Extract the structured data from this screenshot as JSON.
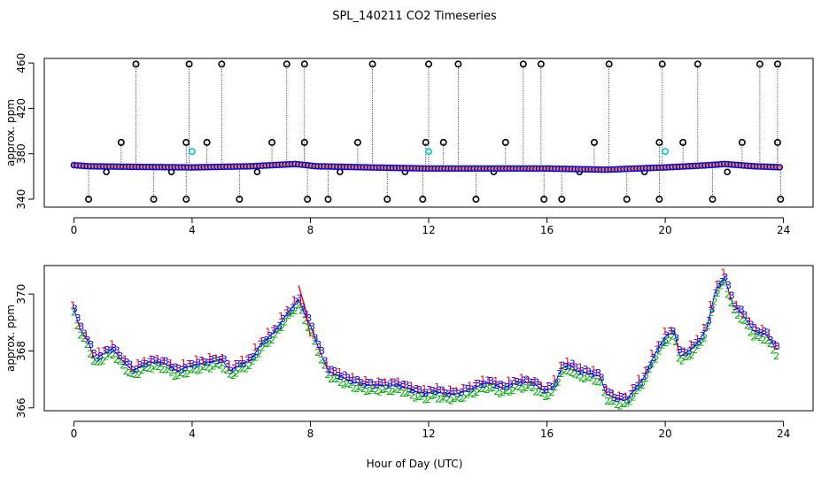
{
  "figure": {
    "title": "SPL_140211  CO2 Timeseries",
    "xlabel": "Hour of Day (UTC)"
  },
  "chart_data": [
    {
      "type": "scatter",
      "panel": "top",
      "ylabel": "approx. ppm",
      "xlim": [
        -1,
        25
      ],
      "ylim": [
        333,
        464
      ],
      "xticks": [
        0,
        4,
        8,
        12,
        16,
        20,
        24
      ],
      "yticks": [
        340,
        380,
        420,
        460
      ],
      "grid": false,
      "baseline_knots": [
        [
          0,
          370
        ],
        [
          0.5,
          369
        ],
        [
          2,
          368.5
        ],
        [
          4,
          368
        ],
        [
          6,
          369
        ],
        [
          7.5,
          371
        ],
        [
          8.2,
          369
        ],
        [
          10,
          368
        ],
        [
          12,
          367
        ],
        [
          14,
          367
        ],
        [
          16,
          367
        ],
        [
          18,
          366
        ],
        [
          20,
          368
        ],
        [
          21.5,
          370
        ],
        [
          22,
          371
        ],
        [
          23,
          369
        ],
        [
          24,
          368
        ]
      ],
      "spikes_high": [
        2.1,
        3.9,
        5.0,
        7.2,
        7.8,
        10.1,
        12.0,
        13.0,
        15.2,
        15.8,
        18.1,
        19.9,
        21.1,
        23.2,
        23.8
      ],
      "spikes_mid": [
        1.6,
        3.8,
        4.5,
        6.7,
        7.8,
        9.6,
        11.9,
        12.5,
        14.6,
        17.6,
        19.8,
        20.6,
        22.6,
        23.8
      ],
      "spikes_low": [
        0.5,
        2.7,
        3.8,
        5.6,
        7.9,
        8.6,
        10.6,
        11.8,
        13.6,
        15.9,
        16.5,
        18.7,
        19.8,
        21.6,
        23.9
      ],
      "minor_marks": [
        1.1,
        3.3,
        6.2,
        9.0,
        11.2,
        14.2,
        17.1,
        19.3,
        22.1
      ],
      "cyan_points": [
        [
          4.0,
          382
        ],
        [
          12.0,
          382
        ],
        [
          20.0,
          382
        ]
      ],
      "spike_values": {
        "high": 459,
        "mid": 390,
        "low": 340,
        "minor": 364
      },
      "colors": {
        "series": "#0000ff",
        "outlier": "#000000",
        "highlight": "#00cccc",
        "fill": "#ff8800"
      }
    },
    {
      "type": "line",
      "panel": "bottom",
      "ylabel": "approx. ppm",
      "xlim": [
        -1,
        25
      ],
      "ylim": [
        365.9,
        371.0
      ],
      "xticks": [
        0,
        4,
        8,
        12,
        16,
        20,
        24
      ],
      "yticks": [
        366,
        368,
        370
      ],
      "grid": false,
      "series": [
        {
          "name": "1",
          "color": "#ff0000",
          "offset": 0.12
        },
        {
          "name": "2",
          "color": "#00aa00",
          "offset": -0.18
        },
        {
          "name": "3",
          "color": "#0000ff",
          "offset": 0.05
        }
      ],
      "knots": [
        [
          0,
          369.5
        ],
        [
          0.2,
          368.8
        ],
        [
          0.5,
          368.3
        ],
        [
          0.7,
          367.7
        ],
        [
          1,
          367.9
        ],
        [
          1.3,
          368.1
        ],
        [
          1.6,
          367.7
        ],
        [
          2,
          367.3
        ],
        [
          2.5,
          367.6
        ],
        [
          3,
          367.6
        ],
        [
          3.5,
          367.3
        ],
        [
          4,
          367.5
        ],
        [
          4.5,
          367.6
        ],
        [
          5,
          367.7
        ],
        [
          5.3,
          367.3
        ],
        [
          5.6,
          367.5
        ],
        [
          6,
          367.7
        ],
        [
          6.3,
          368.2
        ],
        [
          6.8,
          368.7
        ],
        [
          7.2,
          369.3
        ],
        [
          7.6,
          369.8
        ],
        [
          7.8,
          369.3
        ],
        [
          8,
          368.9
        ],
        [
          8.2,
          368.3
        ],
        [
          8.6,
          367.3
        ],
        [
          9,
          367.1
        ],
        [
          9.5,
          366.9
        ],
        [
          10,
          366.8
        ],
        [
          10.5,
          366.8
        ],
        [
          11,
          366.8
        ],
        [
          11.5,
          366.6
        ],
        [
          11.9,
          366.5
        ],
        [
          12.2,
          366.6
        ],
        [
          12.5,
          366.5
        ],
        [
          13,
          366.5
        ],
        [
          13.5,
          366.7
        ],
        [
          14,
          366.9
        ],
        [
          14.5,
          366.7
        ],
        [
          15,
          366.9
        ],
        [
          15.5,
          366.9
        ],
        [
          15.9,
          366.6
        ],
        [
          16.2,
          366.7
        ],
        [
          16.5,
          367.4
        ],
        [
          16.8,
          367.5
        ],
        [
          17,
          367.3
        ],
        [
          17.5,
          367.2
        ],
        [
          17.8,
          367.1
        ],
        [
          18,
          366.5
        ],
        [
          18.4,
          366.3
        ],
        [
          18.7,
          366.3
        ],
        [
          19,
          366.7
        ],
        [
          19.3,
          367.1
        ],
        [
          19.6,
          367.8
        ],
        [
          20,
          368.5
        ],
        [
          20.3,
          368.7
        ],
        [
          20.5,
          367.8
        ],
        [
          20.8,
          368.0
        ],
        [
          21.1,
          368.3
        ],
        [
          21.4,
          368.8
        ],
        [
          21.7,
          370.1
        ],
        [
          22,
          370.6
        ],
        [
          22.3,
          369.6
        ],
        [
          22.6,
          369.3
        ],
        [
          23,
          368.7
        ],
        [
          23.4,
          368.6
        ],
        [
          23.8,
          368.0
        ]
      ],
      "red_excursion": [
        [
          7.6,
          370.3
        ],
        [
          7.8,
          369.6
        ],
        [
          8.0,
          368.5
        ]
      ]
    }
  ]
}
